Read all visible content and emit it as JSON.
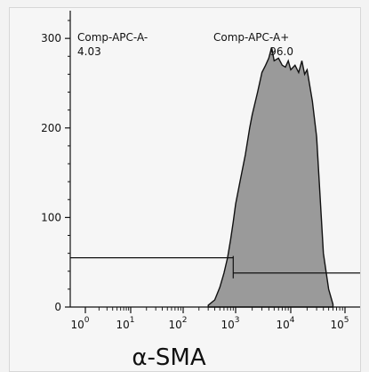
{
  "chart_data": {
    "type": "area",
    "xlabel": "α-SMA",
    "ylabel": "",
    "x_scale": "biexponential",
    "x_ticks": [
      {
        "value": 1,
        "mantissa": "10",
        "exp": "0"
      },
      {
        "value": 10,
        "mantissa": "10",
        "exp": "1"
      },
      {
        "value": 100,
        "mantissa": "10",
        "exp": "2"
      },
      {
        "value": 1000,
        "mantissa": "10",
        "exp": "3"
      },
      {
        "value": 10000,
        "mantissa": "10",
        "exp": "4"
      },
      {
        "value": 100000,
        "mantissa": "10",
        "exp": "5"
      }
    ],
    "y_ticks": [
      "0",
      "100",
      "200",
      "300"
    ],
    "ylim": [
      0,
      325
    ],
    "histogram_fill": "#9a9a9a",
    "series": [
      {
        "x": [
          300,
          400,
          500,
          600,
          700,
          800,
          900,
          1000,
          1200,
          1500,
          1800,
          2000,
          2500,
          3000,
          3500,
          4000,
          4500,
          5000,
          6000,
          7000,
          8000,
          9000,
          10000,
          12000,
          14000,
          16000,
          18000,
          20000,
          25000,
          30000,
          35000,
          40000,
          50000,
          60000
        ],
        "y": [
          2,
          8,
          22,
          38,
          55,
          75,
          95,
          115,
          140,
          170,
          200,
          215,
          240,
          262,
          270,
          278,
          290,
          275,
          278,
          270,
          268,
          275,
          265,
          270,
          262,
          275,
          260,
          265,
          230,
          190,
          120,
          60,
          20,
          3
        ]
      }
    ],
    "gates": [
      {
        "name": "Comp-APC-A-",
        "value": "4.03",
        "range": [
          0.5,
          900
        ],
        "y": 55
      },
      {
        "name": "Comp-APC-A+",
        "value": "96.0",
        "range": [
          900,
          130000
        ],
        "y": 38
      }
    ]
  }
}
